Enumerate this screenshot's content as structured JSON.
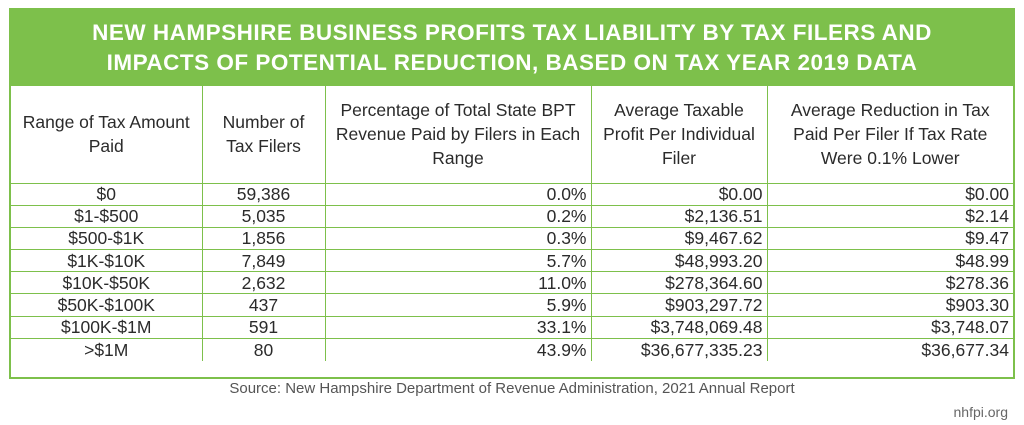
{
  "title": {
    "line1": "NEW HAMPSHIRE BUSINESS PROFITS TAX LIABILITY BY TAX FILERS AND",
    "line2": "IMPACTS OF POTENTIAL REDUCTION, BASED ON TAX YEAR 2019 DATA"
  },
  "headers": [
    "Range of Tax Amount Paid",
    "Number of Tax Filers",
    "Percentage of Total State BPT Revenue Paid by Filers in Each Range",
    "Average Taxable Profit Per Individual Filer",
    "Average Reduction in Tax Paid Per Filer If Tax Rate Were 0.1% Lower"
  ],
  "rows": [
    [
      "$0",
      "59,386",
      "0.0%",
      "$0.00",
      "$0.00"
    ],
    [
      "$1-$500",
      "5,035",
      "0.2%",
      "$2,136.51",
      "$2.14"
    ],
    [
      "$500-$1K",
      "1,856",
      "0.3%",
      "$9,467.62",
      "$9.47"
    ],
    [
      "$1K-$10K",
      "7,849",
      "5.7%",
      "$48,993.20",
      "$48.99"
    ],
    [
      "$10K-$50K",
      "2,632",
      "11.0%",
      "$278,364.60",
      "$278.36"
    ],
    [
      "$50K-$100K",
      "437",
      "5.9%",
      "$903,297.72",
      "$903.30"
    ],
    [
      "$100K-$1M",
      "591",
      "33.1%",
      "$3,748,069.48",
      "$3,748.07"
    ],
    [
      ">$1M",
      "80",
      "43.9%",
      "$36,677,335.23",
      "$36,677.34"
    ]
  ],
  "source": "Source: New Hampshire Department of Revenue Administration, 2021 Annual Report",
  "site": "nhfpi.org",
  "colors": {
    "accent": "#7dc04b",
    "text": "#2b2b2b"
  }
}
